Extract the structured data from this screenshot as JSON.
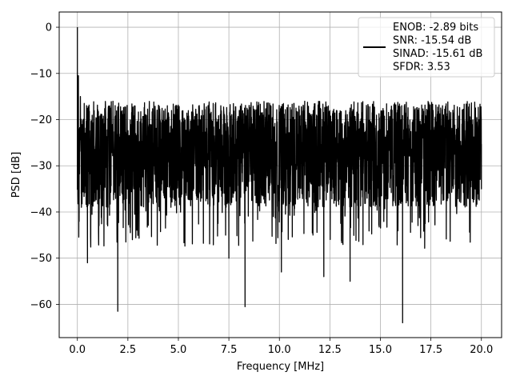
{
  "chart_data": {
    "type": "line",
    "title": "",
    "xlabel": "Frequency [MHz]",
    "ylabel": "PSD [dB]",
    "xlim": [
      -0.9,
      21.0
    ],
    "ylim": [
      -67.2,
      3.3
    ],
    "xticks": [
      0.0,
      2.5,
      5.0,
      7.5,
      10.0,
      12.5,
      15.0,
      17.5,
      20.0
    ],
    "xtick_labels": [
      "0.0",
      "2.5",
      "5.0",
      "7.5",
      "10.0",
      "12.5",
      "15.0",
      "17.5",
      "20.0"
    ],
    "yticks": [
      0,
      -10,
      -20,
      -30,
      -40,
      -50,
      -60
    ],
    "ytick_labels": [
      "0",
      "−10",
      "−20",
      "−30",
      "−40",
      "−50",
      "−60"
    ],
    "grid": true,
    "legend_position": "top-right",
    "series": [
      {
        "name": "ENOB: -2.89 bits",
        "color": "#000000",
        "x": [
          0.0,
          0.02,
          0.05,
          0.1,
          0.15,
          0.2,
          0.3,
          0.5,
          1.0,
          1.5,
          2.0,
          2.4,
          3.0,
          4.0,
          5.0,
          6.0,
          7.0,
          7.5,
          8.3,
          9.0,
          10.1,
          11.0,
          12.2,
          13.5,
          14.5,
          15.5,
          16.1,
          17.0,
          18.0,
          19.0,
          19.9,
          20.0
        ],
        "values": [
          0.0,
          -23.0,
          -10.5,
          -22.0,
          -15.0,
          -25.0,
          -20.0,
          -51.0,
          -25.0,
          -43.0,
          -61.5,
          -46.5,
          -27.0,
          -26.0,
          -27.0,
          -25.0,
          -26.0,
          -50.0,
          -60.5,
          -27.0,
          -53.0,
          -26.0,
          -54.0,
          -55.0,
          -26.0,
          -27.0,
          -64.0,
          -27.0,
          -26.0,
          -27.0,
          -20.0,
          -35.0
        ]
      }
    ],
    "noise_band": {
      "upper_db": -16,
      "lower_db": -39,
      "center_db": -26
    },
    "legend_lines": [
      "ENOB: -2.89 bits",
      "SNR: -15.54 dB",
      "SINAD: -15.61 dB",
      "SFDR: 3.53"
    ],
    "colors": {
      "line": "#000000",
      "grid": "#b0b0b0",
      "frame": "#000000",
      "legend_border": "#cccccc"
    }
  }
}
